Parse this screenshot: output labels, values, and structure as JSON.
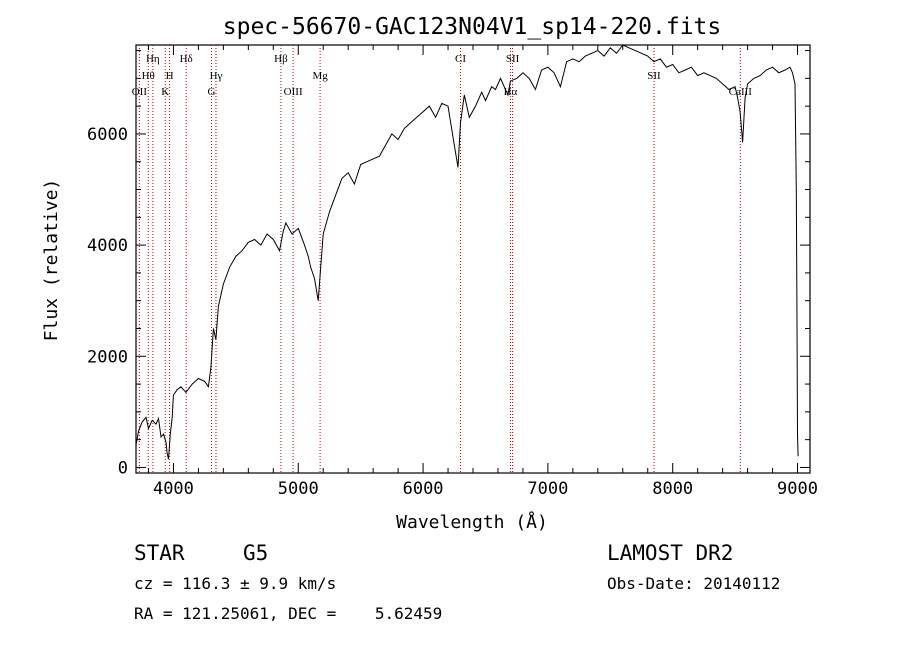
{
  "chart_data": {
    "type": "line",
    "title": "spec-56670-GAC123N04V1_sp14-220.fits",
    "xlabel": "Wavelength (Å)",
    "ylabel": "Flux (relative)",
    "xlim": [
      3700,
      9100
    ],
    "ylim": [
      -100,
      7600
    ],
    "xticks": [
      4000,
      5000,
      6000,
      7000,
      8000,
      9000
    ],
    "yticks": [
      0,
      2000,
      4000,
      6000
    ],
    "series": [
      {
        "x": [
          3700,
          3720,
          3750,
          3780,
          3800,
          3830,
          3860,
          3880,
          3900,
          3920,
          3940,
          3950,
          3960,
          3975,
          3990,
          4000,
          4030,
          4060,
          4100,
          4150,
          4200,
          4250,
          4280,
          4300,
          4320,
          4340,
          4360,
          4400,
          4450,
          4500,
          4550,
          4600,
          4650,
          4700,
          4750,
          4800,
          4850,
          4880,
          4900,
          4950,
          5000,
          5050,
          5080,
          5100,
          5130,
          5160,
          5180,
          5200,
          5250,
          5300,
          5350,
          5400,
          5450,
          5500,
          5550,
          5600,
          5650,
          5700,
          5750,
          5800,
          5850,
          5900,
          5950,
          6000,
          6050,
          6100,
          6150,
          6200,
          6250,
          6280,
          6300,
          6330,
          6370,
          6420,
          6470,
          6500,
          6550,
          6580,
          6620,
          6680,
          6700,
          6750,
          6800,
          6850,
          6900,
          6950,
          7000,
          7050,
          7100,
          7150,
          7200,
          7250,
          7300,
          7350,
          7400,
          7450,
          7500,
          7550,
          7600,
          7650,
          7700,
          7750,
          7800,
          7850,
          7900,
          7950,
          8000,
          8050,
          8100,
          8150,
          8200,
          8250,
          8300,
          8350,
          8400,
          8450,
          8500,
          8520,
          8540,
          8560,
          8580,
          8600,
          8650,
          8700,
          8750,
          8800,
          8850,
          8900,
          8940,
          8960,
          8980,
          8990,
          8995,
          9000,
          9005
        ],
        "y": [
          400,
          650,
          820,
          900,
          700,
          850,
          780,
          880,
          550,
          600,
          450,
          250,
          150,
          600,
          900,
          1300,
          1400,
          1450,
          1350,
          1500,
          1600,
          1550,
          1450,
          1800,
          2500,
          2300,
          2900,
          3300,
          3600,
          3800,
          3900,
          4050,
          4100,
          4000,
          4200,
          4100,
          3900,
          4250,
          4400,
          4200,
          4300,
          4000,
          3800,
          3600,
          3400,
          3000,
          3600,
          4200,
          4600,
          4900,
          5200,
          5300,
          5100,
          5450,
          5500,
          5550,
          5600,
          5800,
          6000,
          5900,
          6100,
          6200,
          6300,
          6400,
          6500,
          6300,
          6550,
          6500,
          5800,
          5400,
          6200,
          6700,
          6300,
          6500,
          6750,
          6600,
          6850,
          6800,
          7000,
          6700,
          6950,
          7000,
          7100,
          7000,
          6800,
          7150,
          7200,
          7100,
          6850,
          7300,
          7350,
          7300,
          7400,
          7450,
          7500,
          7400,
          7550,
          7450,
          7600,
          7550,
          7500,
          7450,
          7400,
          7300,
          7350,
          7200,
          7250,
          7100,
          7150,
          7200,
          7050,
          7100,
          7050,
          7000,
          6900,
          6800,
          6850,
          6650,
          6400,
          5850,
          6650,
          6900,
          7000,
          7050,
          7150,
          7200,
          7100,
          7150,
          7200,
          7100,
          6900,
          5000,
          3000,
          600,
          200
        ]
      }
    ],
    "lines": [
      {
        "name": "OII",
        "x": 3727,
        "row": 3
      },
      {
        "name": "Hθ",
        "x": 3798,
        "row": 2
      },
      {
        "name": "Hη",
        "x": 3835,
        "row": 1
      },
      {
        "name": "K",
        "x": 3934,
        "row": 3
      },
      {
        "name": "H",
        "x": 3969,
        "row": 2
      },
      {
        "name": "Hδ",
        "x": 4102,
        "row": 1
      },
      {
        "name": "G",
        "x": 4305,
        "row": 3
      },
      {
        "name": "Hγ",
        "x": 4341,
        "row": 2
      },
      {
        "name": "Hβ",
        "x": 4861,
        "row": 1
      },
      {
        "name": "OIII",
        "x": 4959,
        "row": 3
      },
      {
        "name": "Mg",
        "x": 5175,
        "row": 2
      },
      {
        "name": "CI",
        "x": 6300,
        "row": 1
      },
      {
        "name": "SII",
        "x": 6717,
        "row": 1
      },
      {
        "name": "Hα",
        "x": 6700,
        "row": 3
      },
      {
        "name": "SII",
        "x": 7850,
        "row": 2
      },
      {
        "name": "CaIII",
        "x": 8542,
        "row": 3
      }
    ]
  },
  "info": {
    "object_type": "STAR",
    "subclass": "G5",
    "survey": "LAMOST DR2",
    "cz": "cz = 116.3 ± 9.9 km/s",
    "obs_date": "Obs-Date: 20140112",
    "radec": "RA = 121.25061, DEC =    5.62459"
  }
}
